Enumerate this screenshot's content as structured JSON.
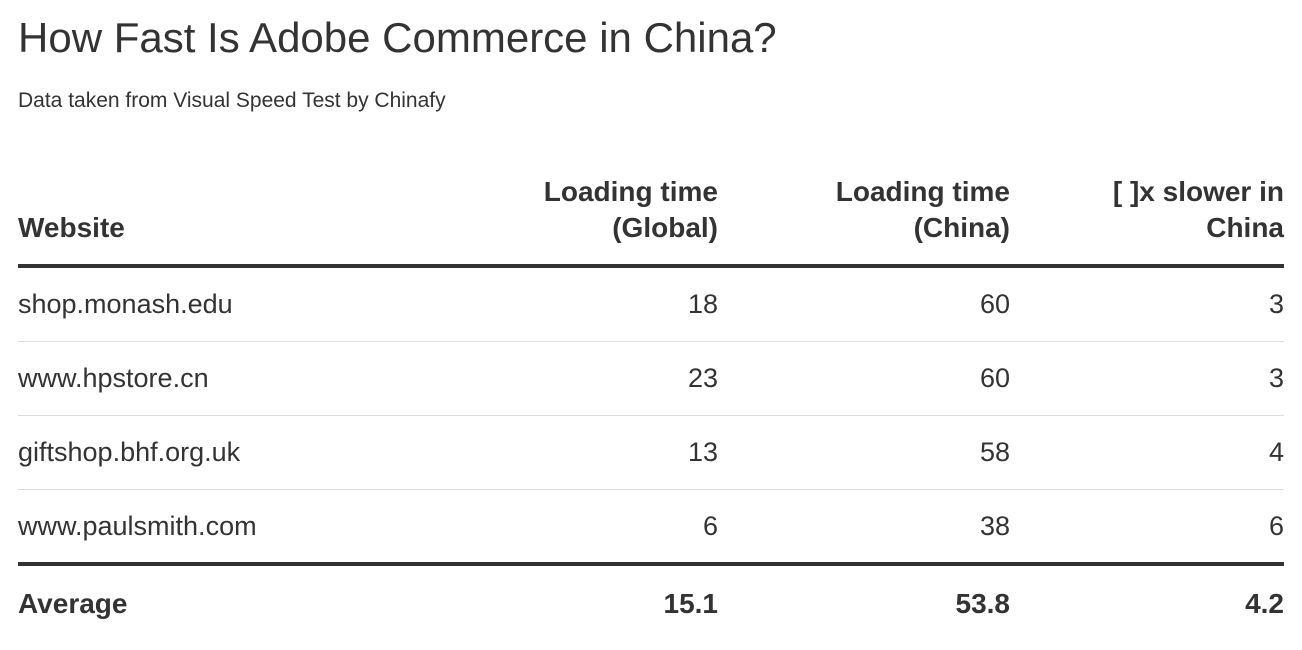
{
  "title": "How Fast Is Adobe Commerce in China?",
  "subtitle": "Data taken from Visual Speed Test by Chinafy",
  "table": {
    "headers": {
      "website": "Website",
      "global": "Loading time (Global)",
      "china": "Loading time (China)",
      "ratio": "[ ]x slower in China"
    },
    "rows": [
      {
        "website": "shop.monash.edu",
        "global": "18",
        "china": "60",
        "ratio": "3"
      },
      {
        "website": "www.hpstore.cn",
        "global": "23",
        "china": "60",
        "ratio": "3"
      },
      {
        "website": "giftshop.bhf.org.uk",
        "global": "13",
        "china": "58",
        "ratio": "4"
      },
      {
        "website": "www.paulsmith.com",
        "global": "6",
        "china": "38",
        "ratio": "6"
      }
    ],
    "average": {
      "label": "Average",
      "global": "15.1",
      "china": "53.8",
      "ratio": "4.2"
    }
  },
  "chart_data": {
    "type": "table",
    "title": "How Fast Is Adobe Commerce in China?",
    "subtitle": "Data taken from Visual Speed Test by Chinafy",
    "columns": [
      "Website",
      "Loading time (Global)",
      "Loading time (China)",
      "[ ]x slower in China"
    ],
    "rows": [
      [
        "shop.monash.edu",
        18,
        60,
        3
      ],
      [
        "www.hpstore.cn",
        23,
        60,
        3
      ],
      [
        "giftshop.bhf.org.uk",
        13,
        58,
        4
      ],
      [
        "www.paulsmith.com",
        6,
        38,
        6
      ]
    ],
    "footer": [
      "Average",
      15.1,
      53.8,
      4.2
    ]
  }
}
